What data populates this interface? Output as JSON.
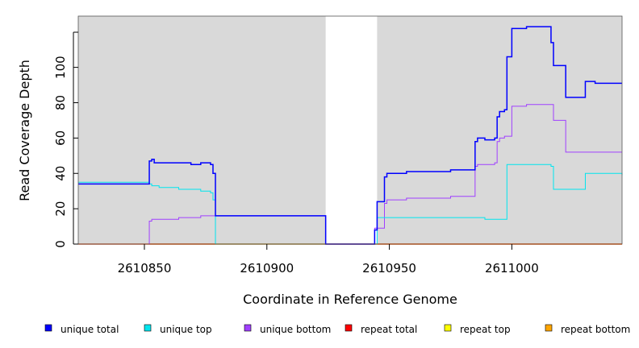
{
  "chart_data": {
    "type": "line",
    "xlabel": "Coordinate in Reference Genome",
    "ylabel": "Read Coverage Depth",
    "xlim": [
      2610823,
      2611045
    ],
    "ylim": [
      0,
      129
    ],
    "x_ticks": [
      2610850,
      2610900,
      2610950,
      2611000
    ],
    "x_tick_labels": [
      "2610850",
      "2610900",
      "2610950",
      "2611000"
    ],
    "y_ticks": [
      0,
      20,
      40,
      60,
      80,
      100
    ],
    "y_tick_labels": [
      "0",
      "20",
      "40",
      "60",
      "80",
      "100"
    ],
    "gap_region": [
      2610924,
      2610945
    ],
    "grid": false,
    "legend_position": "bottom",
    "colors": {
      "panel_background": "#d9d9d9",
      "gap_background": "#ffffff",
      "unique_total": "#0000ff",
      "unique_top": "#00e5ee",
      "unique_bottom": "#a040ff",
      "repeat_total": "#ff0000",
      "repeat_top": "#ffff00",
      "repeat_bottom": "#ffa500"
    },
    "series": [
      {
        "name": "unique total",
        "color": "#0000ff",
        "x": [
          2610823,
          2610852,
          2610853,
          2610854,
          2610856,
          2610864,
          2610869,
          2610873,
          2610877,
          2610878,
          2610879,
          2610880,
          2610924,
          2610944,
          2610945,
          2610948,
          2610949,
          2610953,
          2610957,
          2610975,
          2610985,
          2610986,
          2610989,
          2610993,
          2610994,
          2610995,
          2610997,
          2610998,
          2611000,
          2611006,
          2611016,
          2611017,
          2611022,
          2611030,
          2611034,
          2611045
        ],
        "y": [
          34,
          47,
          48,
          46,
          46,
          46,
          45,
          46,
          45,
          40,
          16,
          16,
          0,
          8,
          24,
          38,
          40,
          40,
          41,
          42,
          58,
          60,
          59,
          60,
          72,
          75,
          76,
          106,
          122,
          123,
          114,
          101,
          83,
          92,
          91,
          91
        ]
      },
      {
        "name": "unique top",
        "color": "#00e5ee",
        "x": [
          2610823,
          2610852,
          2610853,
          2610856,
          2610864,
          2610869,
          2610873,
          2610877,
          2610878,
          2610879,
          2610880,
          2610924,
          2610945,
          2610985,
          2610989,
          2610998,
          2611016,
          2611017,
          2611030,
          2611045
        ],
        "y": [
          35,
          34,
          33,
          32,
          31,
          31,
          30,
          29,
          25,
          0,
          0,
          0,
          15,
          15,
          14,
          45,
          44,
          31,
          40,
          39
        ]
      },
      {
        "name": "unique bottom",
        "color": "#a040ff",
        "x": [
          2610823,
          2610852,
          2610853,
          2610854,
          2610864,
          2610869,
          2610873,
          2610877,
          2610880,
          2610924,
          2610944,
          2610945,
          2610948,
          2610949,
          2610953,
          2610957,
          2610975,
          2610985,
          2610986,
          2610989,
          2610993,
          2610994,
          2610995,
          2610997,
          2611000,
          2611006,
          2611017,
          2611022,
          2611045
        ],
        "y": [
          0,
          13,
          14,
          14,
          15,
          15,
          16,
          16,
          16,
          0,
          9,
          9,
          23,
          25,
          25,
          26,
          27,
          44,
          45,
          45,
          46,
          58,
          60,
          61,
          78,
          79,
          70,
          52,
          52
        ]
      },
      {
        "name": "repeat total",
        "color": "#ff0000",
        "x": [
          2610823,
          2611045
        ],
        "y": [
          0,
          0
        ]
      },
      {
        "name": "repeat top",
        "color": "#ffff00",
        "x": [
          2610823,
          2611045
        ],
        "y": [
          0,
          0
        ]
      },
      {
        "name": "repeat bottom",
        "color": "#ffa500",
        "x": [
          2610823,
          2611045
        ],
        "y": [
          0,
          0
        ]
      }
    ]
  }
}
